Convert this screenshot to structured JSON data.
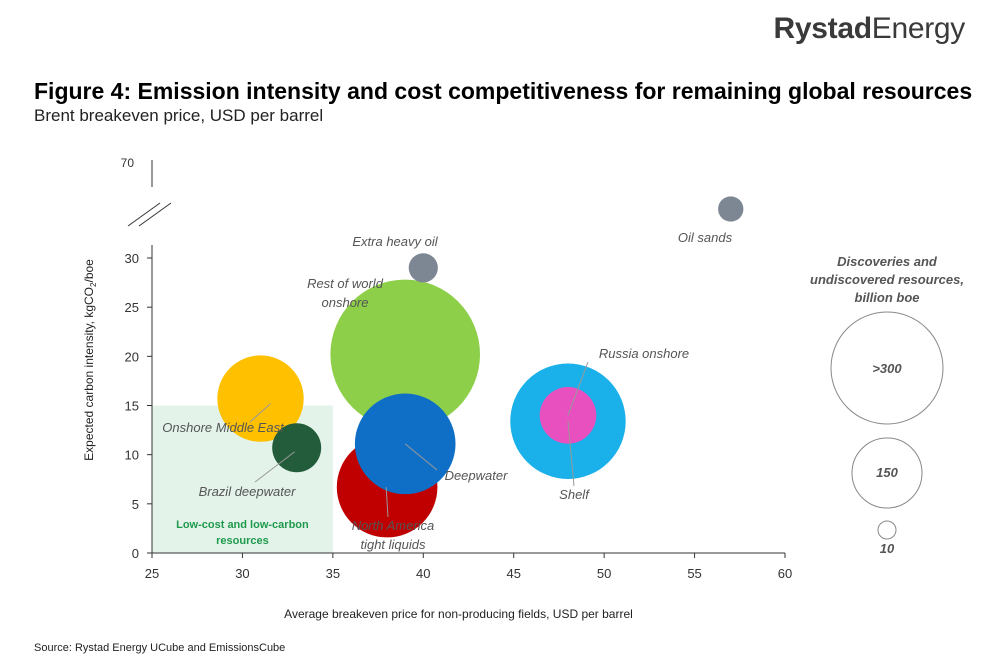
{
  "brand": {
    "name_bold": "Rystad",
    "name_light": "Energy"
  },
  "header": {
    "title": "Figure 4: Emission intensity and cost competitiveness for remaining global resources",
    "subtitle": "Brent breakeven price, USD per barrel"
  },
  "footer": {
    "source": "Source: Rystad Energy UCube and EmissionsCube"
  },
  "chart_data": {
    "type": "scatter",
    "bubble": true,
    "xlabel": "Average breakeven price for non-producing fields, USD per barrel",
    "ylabel_main": "Expected carbon intensity, kgCO",
    "ylabel_sub": "2",
    "ylabel_tail": "/boe",
    "xlim": [
      25,
      60
    ],
    "ylim": [
      0,
      30
    ],
    "x_ticks": [
      25,
      30,
      35,
      40,
      45,
      50,
      55,
      60
    ],
    "y_ticks": [
      0,
      5,
      10,
      15,
      20,
      25,
      30
    ],
    "y_break_tick": 70,
    "grid": false,
    "shaded_region": {
      "x": [
        25,
        35
      ],
      "y": [
        0,
        15
      ],
      "label_line1": "Low-cost and low-carbon",
      "label_line2": "resources",
      "color": "#e3f3ea",
      "label_color": "#1f9a4c"
    },
    "series": [
      {
        "name": "Rest of world onshore",
        "label_line1": "Rest of world",
        "label_line2": "onshore",
        "x": 39,
        "y": 20.2,
        "size_billion_boe": 420,
        "color": "#8dcf49"
      },
      {
        "name": "Deepwater",
        "label_line1": "Deepwater",
        "x": 39,
        "y": 11.1,
        "size_billion_boe": 190,
        "color": "#0f6fc6"
      },
      {
        "name": "North America tight liquids",
        "label_line1": "North America",
        "label_line2": "tight liquids",
        "x": 38,
        "y": 6.7,
        "size_billion_boe": 190,
        "color": "#c00000"
      },
      {
        "name": "Onshore Middle East",
        "label_line1": "Onshore Middle East",
        "x": 31,
        "y": 15.7,
        "size_billion_boe": 140,
        "color": "#ffc000"
      },
      {
        "name": "Brazil deepwater",
        "label_line1": "Brazil deepwater",
        "x": 33,
        "y": 10.7,
        "size_billion_boe": 45,
        "color": "#235c3b"
      },
      {
        "name": "Shelf",
        "label_line1": "Shelf",
        "x": 48,
        "y": 13.4,
        "size_billion_boe": 250,
        "color": "#1ab1ea"
      },
      {
        "name": "Russia onshore",
        "label_line1": "Russia onshore",
        "x": 48,
        "y": 14.0,
        "size_billion_boe": 60,
        "color": "#e84fbf"
      },
      {
        "name": "Extra heavy oil",
        "label_line1": "Extra heavy oil",
        "x": 40,
        "y": 29.0,
        "size_billion_boe": 16,
        "color": "#7d8693"
      },
      {
        "name": "Oil sands",
        "label_line1": "Oil sands",
        "x": 57,
        "y": 65,
        "size_billion_boe": 12,
        "color": "#7d8693",
        "above_break": true
      }
    ],
    "size_legend": {
      "title_line1": "Discoveries and",
      "title_line2": "undiscovered resources,",
      "title_line3": "billion boe",
      "entries": [
        {
          "label": ">300",
          "value": 370
        },
        {
          "label": "150",
          "value": 150
        },
        {
          "label": "10",
          "value": 10
        }
      ]
    }
  }
}
